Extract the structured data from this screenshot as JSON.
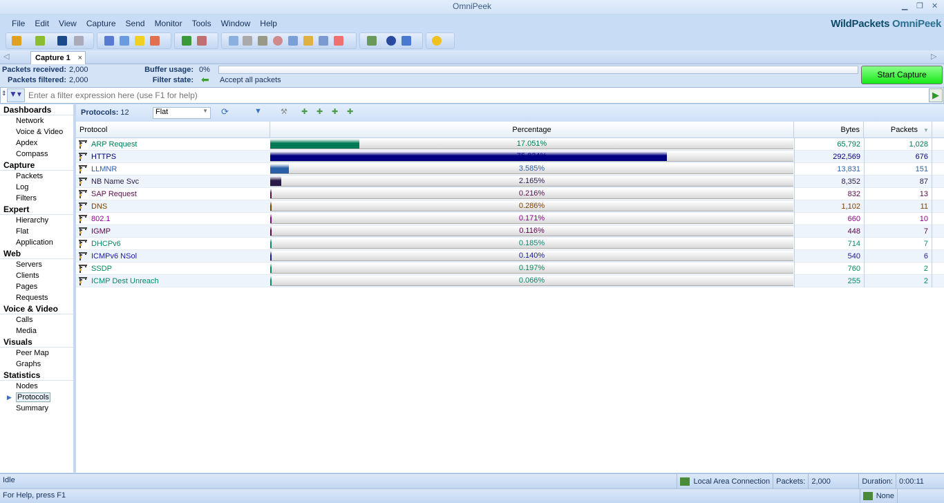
{
  "window": {
    "title": "OmniPeek",
    "logo_text_1": "WildPackets",
    "logo_text_2": "OmniPeek"
  },
  "menu": [
    "File",
    "Edit",
    "View",
    "Capture",
    "Send",
    "Monitor",
    "Tools",
    "Window",
    "Help"
  ],
  "tab": {
    "label": "Capture 1",
    "close": "×"
  },
  "info": {
    "packets_received_label": "Packets received:",
    "packets_received": "2,000",
    "packets_filtered_label": "Packets filtered:",
    "packets_filtered": "2,000",
    "buffer_usage_label": "Buffer usage:",
    "buffer_usage": "0%",
    "buffer_fraction": 0,
    "filter_state_label": "Filter state:",
    "filter_state": "Accept all packets",
    "start_capture": "Start Capture"
  },
  "filter": {
    "placeholder": "Enter a filter expression here (use F1 for help)"
  },
  "sidebar": [
    {
      "header": "Dashboards",
      "items": [
        "Network",
        "Voice & Video",
        "Apdex",
        "Compass"
      ]
    },
    {
      "header": "Capture",
      "items": [
        "Packets",
        "Log",
        "Filters"
      ]
    },
    {
      "header": "Expert",
      "items": [
        "Hierarchy",
        "Flat",
        "Application"
      ]
    },
    {
      "header": "Web",
      "items": [
        "Servers",
        "Clients",
        "Pages",
        "Requests"
      ]
    },
    {
      "header": "Voice & Video",
      "items": [
        "Calls",
        "Media"
      ]
    },
    {
      "header": "Visuals",
      "items": [
        "Peer Map",
        "Graphs"
      ]
    },
    {
      "header": "Statistics",
      "items": [
        "Nodes",
        "Protocols",
        "Summary"
      ]
    }
  ],
  "selected_sidebar": "Protocols",
  "protocols_toolbar": {
    "count_label": "Protocols:",
    "count": "12",
    "view": "Flat"
  },
  "table": {
    "columns": [
      "Protocol",
      "Percentage",
      "Bytes",
      "Packets"
    ],
    "rows": [
      {
        "protocol": "ARP Request",
        "percentage": "17.051%",
        "pct": 17.051,
        "bytes": "65,792",
        "packets": "1,028",
        "color": "#007a55"
      },
      {
        "protocol": "HTTPS",
        "percentage": "75.824%",
        "pct": 75.824,
        "bytes": "292,569",
        "packets": "676",
        "color": "#000080"
      },
      {
        "protocol": "LLMNR",
        "percentage": "3.585%",
        "pct": 3.585,
        "bytes": "13,831",
        "packets": "151",
        "color": "#2a5fa5"
      },
      {
        "protocol": "NB Name Svc",
        "percentage": "2.165%",
        "pct": 2.165,
        "bytes": "8,352",
        "packets": "87",
        "color": "#2a1a4a"
      },
      {
        "protocol": "SAP Request",
        "percentage": "0.216%",
        "pct": 0.216,
        "bytes": "832",
        "packets": "13",
        "color": "#5a0a4a"
      },
      {
        "protocol": "DNS",
        "percentage": "0.286%",
        "pct": 0.286,
        "bytes": "1,102",
        "packets": "11",
        "color": "#7a4000"
      },
      {
        "protocol": "802.1",
        "percentage": "0.171%",
        "pct": 0.171,
        "bytes": "660",
        "packets": "10",
        "color": "#8a008a"
      },
      {
        "protocol": "IGMP",
        "percentage": "0.116%",
        "pct": 0.116,
        "bytes": "448",
        "packets": "7",
        "color": "#5a004a"
      },
      {
        "protocol": "DHCPv6",
        "percentage": "0.185%",
        "pct": 0.185,
        "bytes": "714",
        "packets": "7",
        "color": "#008a6a"
      },
      {
        "protocol": "ICMPv6 NSol",
        "percentage": "0.140%",
        "pct": 0.14,
        "bytes": "540",
        "packets": "6",
        "color": "#1a1a9a"
      },
      {
        "protocol": "SSDP",
        "percentage": "0.197%",
        "pct": 0.197,
        "bytes": "760",
        "packets": "2",
        "color": "#008a5a"
      },
      {
        "protocol": "ICMP Dest Unreach",
        "percentage": "0.066%",
        "pct": 0.066,
        "bytes": "255",
        "packets": "2",
        "color": "#008a6a"
      }
    ]
  },
  "status": {
    "state": "Idle",
    "adapter": "Local Area Connection",
    "packets_label": "Packets:",
    "packets": "2,000",
    "duration_label": "Duration:",
    "duration": "0:00:11",
    "help": "For Help, press F1",
    "adapter2": "None"
  }
}
